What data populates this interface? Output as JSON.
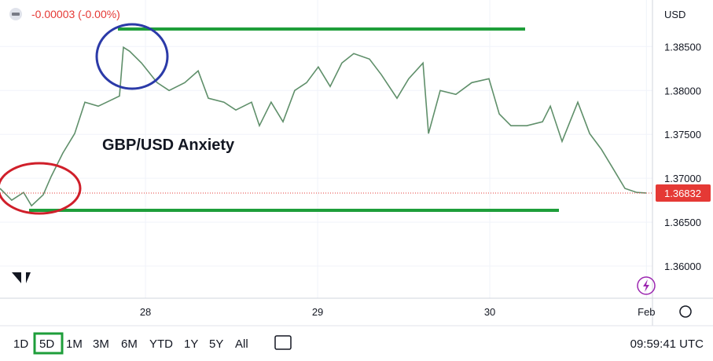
{
  "header": {
    "change": "-0.00003 (-0.00%)"
  },
  "chart_data": {
    "type": "line",
    "annotation": "GBP/USD Anxiety",
    "currency": "USD",
    "color": "#5f8f6a",
    "x": [
      27.155,
      27.223,
      27.292,
      27.338,
      27.406,
      27.452,
      27.52,
      27.589,
      27.648,
      27.726,
      27.794,
      27.849,
      27.872,
      27.908,
      27.977,
      28.068,
      28.137,
      28.228,
      28.306,
      28.365,
      28.456,
      28.525,
      28.616,
      28.662,
      28.73,
      28.799,
      28.867,
      28.936,
      29.004,
      29.073,
      29.141,
      29.21,
      29.301,
      29.37,
      29.461,
      29.529,
      29.612,
      29.644,
      29.712,
      29.803,
      29.895,
      29.995,
      30.055,
      30.123,
      30.215,
      30.306,
      30.352,
      30.42,
      30.511,
      30.58,
      30.648,
      30.717,
      30.785,
      30.854,
      30.908
    ],
    "values": [
      1.36884,
      1.3675,
      1.36839,
      1.36687,
      1.36812,
      1.37018,
      1.37286,
      1.37509,
      1.37866,
      1.37821,
      1.37884,
      1.37937,
      1.38491,
      1.38446,
      1.38312,
      1.38089,
      1.38,
      1.38089,
      1.38223,
      1.37911,
      1.37866,
      1.37777,
      1.37866,
      1.37598,
      1.37866,
      1.37643,
      1.38,
      1.38089,
      1.38268,
      1.38045,
      1.38312,
      1.3842,
      1.38357,
      1.38179,
      1.37911,
      1.38134,
      1.38312,
      1.37509,
      1.38,
      1.37955,
      1.38089,
      1.38134,
      1.37732,
      1.37598,
      1.37598,
      1.37643,
      1.37821,
      1.3742,
      1.37866,
      1.37509,
      1.3733,
      1.37107,
      1.36884,
      1.36839,
      1.36832
    ],
    "current_price": {
      "value": 1.36832,
      "label": "1.36832",
      "color": "#e53935"
    },
    "xlim": [
      27.155,
      30.945
    ],
    "ylim": [
      1.35634,
      1.3903
    ],
    "xticks": [
      {
        "value": 28,
        "label": "28"
      },
      {
        "value": 29,
        "label": "29"
      },
      {
        "value": 30,
        "label": "30"
      },
      {
        "value": 30.91,
        "label": "Feb"
      }
    ],
    "yticks": [
      {
        "value": 1.36,
        "label": "1.36000"
      },
      {
        "value": 1.365,
        "label": "1.36500"
      },
      {
        "value": 1.37,
        "label": "1.37000"
      },
      {
        "value": 1.375,
        "label": "1.37500"
      },
      {
        "value": 1.38,
        "label": "1.38000"
      },
      {
        "value": 1.385,
        "label": "1.38500"
      }
    ],
    "grid": true
  },
  "toolbar": {
    "ranges": [
      "1D",
      "5D",
      "1M",
      "3M",
      "6M",
      "YTD",
      "1Y",
      "5Y",
      "All"
    ],
    "active": 1,
    "clock": "09:59:41 UTC"
  }
}
